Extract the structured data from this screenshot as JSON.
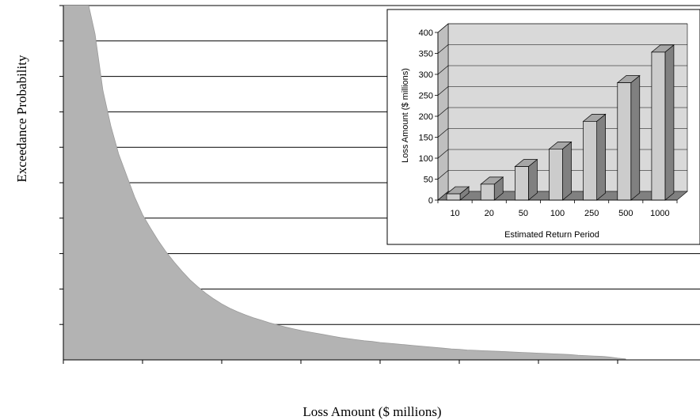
{
  "chart_data": [
    {
      "type": "area",
      "xlabel": "Loss Amount ($ millions)",
      "ylabel": "Exceedance Probability",
      "grid": true,
      "legend": "none",
      "tick_labels_shown": false,
      "fill_color": "#b3b3b3",
      "x": [
        0,
        1,
        2,
        3,
        4,
        5,
        6,
        7,
        8,
        9,
        10,
        11,
        12,
        13,
        14,
        15,
        16,
        17,
        18,
        19,
        20,
        21,
        22,
        23,
        24,
        25,
        26,
        27,
        28,
        29,
        30,
        31,
        32,
        33,
        34,
        35,
        36,
        37,
        38,
        39,
        40,
        41,
        42,
        43,
        44,
        45,
        46,
        47,
        48,
        49,
        50,
        51,
        52,
        53,
        54,
        55,
        56,
        57,
        58,
        59,
        60,
        61,
        62,
        63,
        64,
        65,
        66,
        67,
        68,
        69,
        70,
        71
      ],
      "values": [
        10.2,
        10.2,
        10.2,
        10.2,
        9.2,
        7.6,
        6.6,
        5.8,
        5.2,
        4.6,
        4.1,
        3.72,
        3.36,
        3.04,
        2.76,
        2.5,
        2.26,
        2.06,
        1.88,
        1.72,
        1.58,
        1.46,
        1.36,
        1.27,
        1.19,
        1.12,
        1.05,
        0.99,
        0.93,
        0.88,
        0.83,
        0.79,
        0.75,
        0.71,
        0.67,
        0.63,
        0.6,
        0.57,
        0.54,
        0.52,
        0.49,
        0.47,
        0.45,
        0.43,
        0.41,
        0.39,
        0.37,
        0.35,
        0.33,
        0.31,
        0.3,
        0.28,
        0.27,
        0.26,
        0.25,
        0.24,
        0.23,
        0.22,
        0.21,
        0.2,
        0.19,
        0.18,
        0.17,
        0.16,
        0.15,
        0.13,
        0.12,
        0.11,
        0.1,
        0.08,
        0.05,
        0.03
      ],
      "xlim": [
        0,
        80
      ],
      "ylim": [
        0,
        10
      ],
      "gridlines_y": [
        1,
        2,
        3,
        4,
        5,
        6,
        7,
        8,
        9,
        10
      ],
      "ticks_x": [
        0,
        10,
        20,
        30,
        40,
        50,
        60,
        70
      ]
    },
    {
      "type": "bar",
      "style": "3d",
      "xlabel": "Estimated Return Period",
      "ylabel": "Loss Amount ($ millions)",
      "categories": [
        "10",
        "20",
        "50",
        "100",
        "250",
        "500",
        "1000"
      ],
      "values": [
        15,
        38,
        80,
        122,
        188,
        280,
        353
      ],
      "ylim": [
        0,
        400
      ],
      "yticks": [
        "0",
        "50",
        "100",
        "150",
        "200",
        "250",
        "300",
        "350",
        "400"
      ],
      "grid": true,
      "legend": "none",
      "bar_front_color": "#cccccc",
      "bar_side_color": "#808080",
      "bar_top_color": "#a6a6a6",
      "wall_color": "#d9d9d9",
      "floor_color": "#808080"
    }
  ]
}
